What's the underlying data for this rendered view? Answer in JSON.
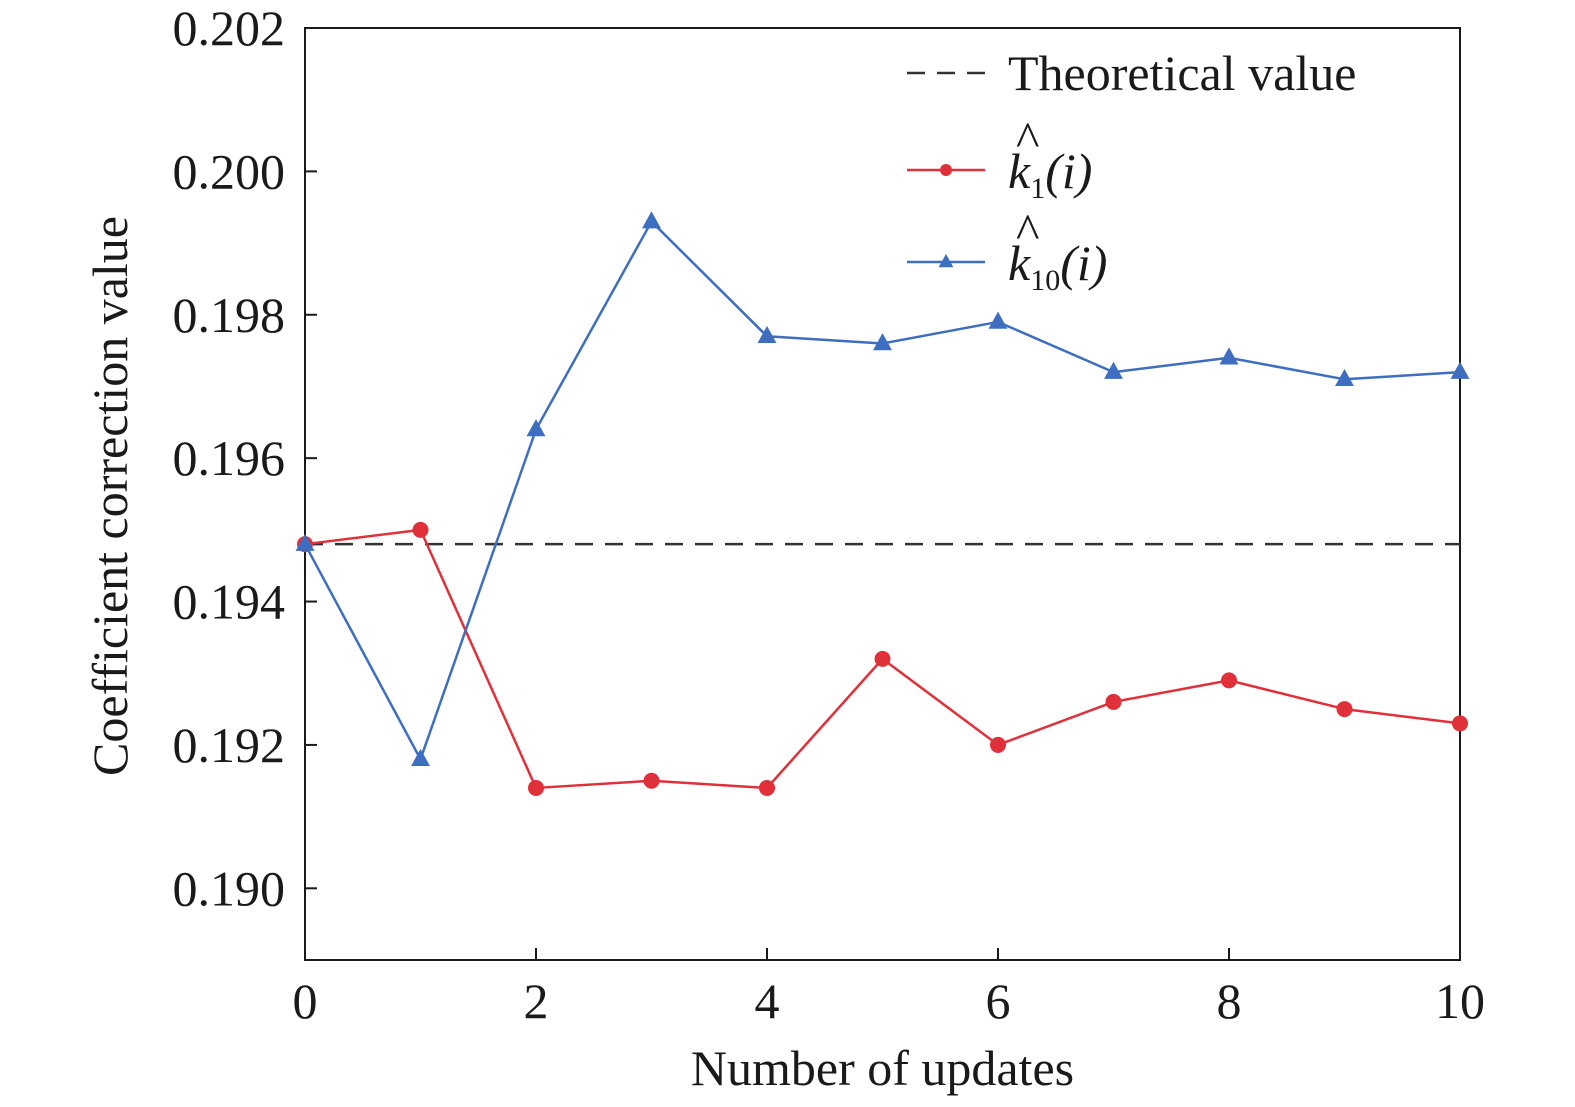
{
  "chart_data": {
    "type": "line",
    "xlabel": "Number of updates",
    "ylabel": "Coefficient correction value",
    "xlim": [
      0,
      10
    ],
    "ylim": [
      0.189,
      0.202
    ],
    "xticks": [
      0,
      2,
      4,
      6,
      8,
      10
    ],
    "xtick_labels": [
      "0",
      "2",
      "4",
      "6",
      "8",
      "10"
    ],
    "yticks": [
      0.19,
      0.192,
      0.194,
      0.196,
      0.198,
      0.2,
      0.202
    ],
    "ytick_labels": [
      "0.190",
      "0.192",
      "0.194",
      "0.196",
      "0.198",
      "0.200",
      "0.202"
    ],
    "grid": false,
    "legend_position": "top-right",
    "reference_line": {
      "name": "Theoretical value",
      "y": 0.1948,
      "color": "#333333",
      "style": "dashed"
    },
    "x": [
      0,
      1,
      2,
      3,
      4,
      5,
      6,
      7,
      8,
      9,
      10
    ],
    "series": [
      {
        "name": "k̂1(i)",
        "label_base": "k",
        "label_sub": "1",
        "label_arg": "(i)",
        "color": "#e0303a",
        "marker": "circle",
        "values": [
          0.1948,
          0.195,
          0.1914,
          0.1915,
          0.1914,
          0.1932,
          0.192,
          0.1926,
          0.1929,
          0.1925,
          0.1923
        ]
      },
      {
        "name": "k̂10(i)",
        "label_base": "k",
        "label_sub": "10",
        "label_arg": "(i)",
        "color": "#3d6ebf",
        "marker": "triangle",
        "values": [
          0.1948,
          0.1918,
          0.1964,
          0.1993,
          0.1977,
          0.1976,
          0.1979,
          0.1972,
          0.1974,
          0.1971,
          0.1972
        ]
      }
    ]
  }
}
